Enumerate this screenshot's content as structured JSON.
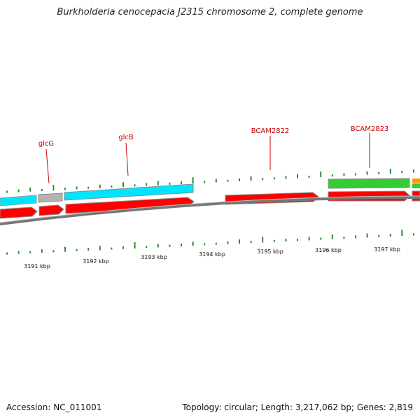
{
  "title": "Burkholderia cenocepacia J2315 chromosome 2, complete genome",
  "footer": {
    "accession": "Accession: NC_011001",
    "summary": "Topology: circular; Length: 3,217,062 bp; Genes: 2,819"
  },
  "colors": {
    "forward_cds": "#ff0000",
    "reverse_cds_cyan": "#00e5ff",
    "reverse_cds_gray": "#b3b3b3",
    "reverse_cds_green": "#33cc33",
    "other_feature": "#ff9900",
    "gc_ticks": "#2e8b2e",
    "backbone": "#777777",
    "label": "#cc0000"
  },
  "gene_labels": [
    "glcG",
    "glcB",
    "BCAM2822",
    "BCAM2823"
  ],
  "scale_labels": [
    "3191 kbp",
    "3192 kbp",
    "3193 kbp",
    "3194 kbp",
    "3195 kbp",
    "3196 kbp",
    "3197 kbp"
  ]
}
